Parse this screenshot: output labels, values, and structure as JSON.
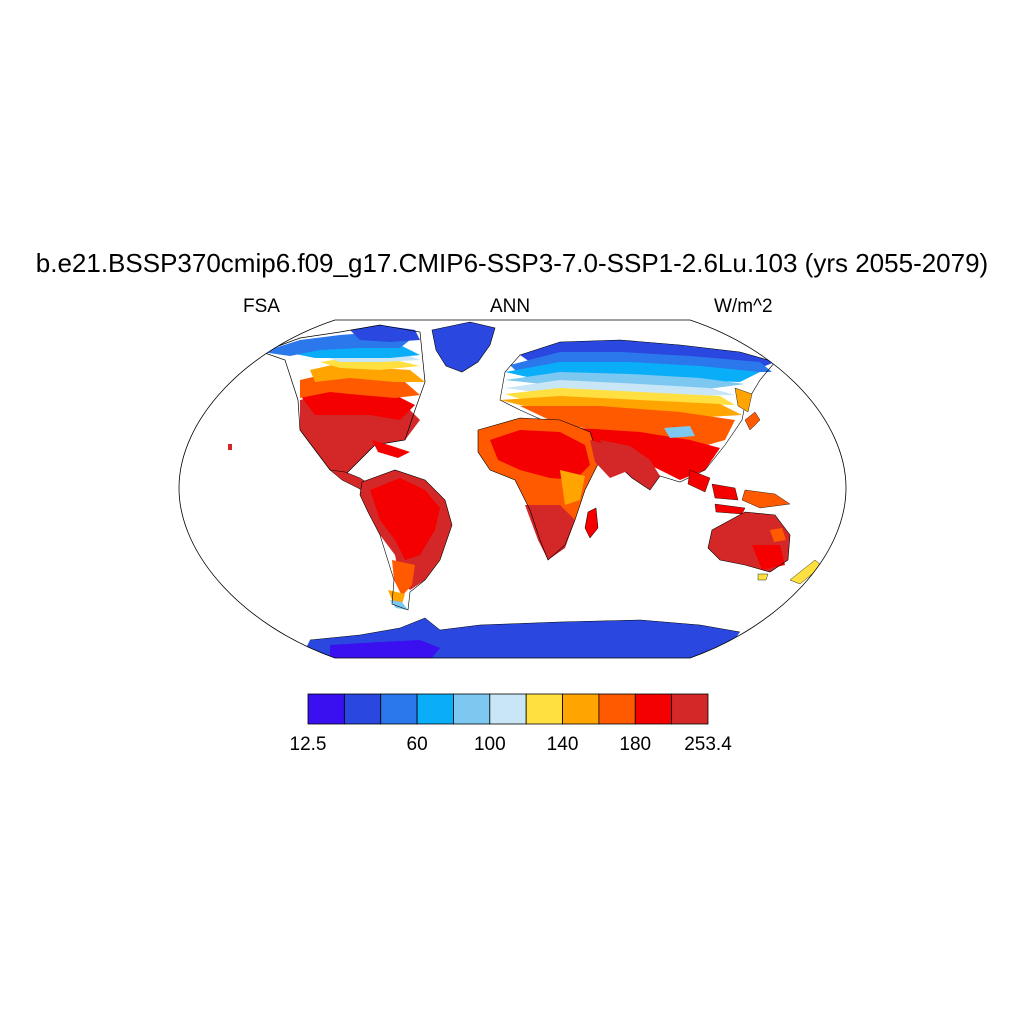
{
  "title": "b.e21.BSSP370cmip6.f09_g17.CMIP6-SSP3-7.0-SSP1-2.6Lu.103 (yrs 2055-2079)",
  "left_label": "FSA",
  "center_label": "ANN",
  "right_label": "W/m^2",
  "colorbar": {
    "colors": [
      "#3a10f0",
      "#2a48e0",
      "#2a78ec",
      "#0aaef8",
      "#7cc8f0",
      "#c8e6f6",
      "#ffe040",
      "#ffa400",
      "#ff5a00",
      "#f40000",
      "#d42828"
    ],
    "labels": [
      "12.5",
      "60",
      "100",
      "140",
      "180",
      "253.4"
    ]
  }
}
